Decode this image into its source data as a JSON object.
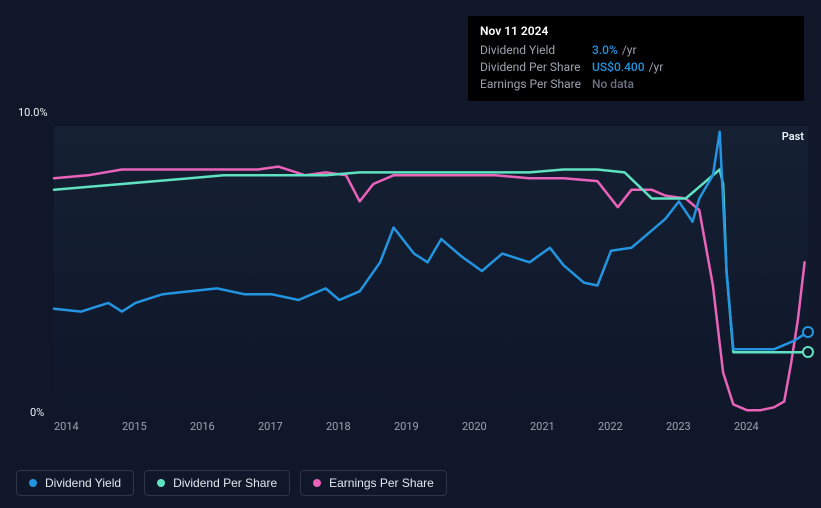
{
  "tooltip": {
    "date": "Nov 11 2024",
    "rows": [
      {
        "label": "Dividend Yield",
        "value": "3.0%",
        "unit": "/yr",
        "cls": ""
      },
      {
        "label": "Dividend Per Share",
        "value": "US$0.400",
        "unit": "/yr",
        "cls": ""
      },
      {
        "label": "Earnings Per Share",
        "value": "No data",
        "unit": "",
        "cls": "nodata"
      }
    ]
  },
  "chart": {
    "type": "line",
    "y_top_label_text": "10.0%",
    "y_bot_label_text": "0%",
    "ylim": [
      0,
      10
    ],
    "x_ticks": [
      "2014",
      "2015",
      "2016",
      "2017",
      "2018",
      "2019",
      "2020",
      "2021",
      "2022",
      "2023",
      "2024"
    ],
    "plot_bg_top": "#152033",
    "plot_bg_bot": "#0f1729",
    "axis_text_color": "#eef2f7",
    "tick_color": "#9ca3af",
    "past_label": "Past",
    "line_width": 2.5,
    "series": {
      "dividend_yield": {
        "color": "#2394df",
        "points": [
          [
            0,
            3.7
          ],
          [
            0.4,
            3.6
          ],
          [
            0.8,
            3.9
          ],
          [
            1.0,
            3.6
          ],
          [
            1.2,
            3.9
          ],
          [
            1.6,
            4.2
          ],
          [
            2.0,
            4.3
          ],
          [
            2.4,
            4.4
          ],
          [
            2.8,
            4.2
          ],
          [
            3.2,
            4.2
          ],
          [
            3.6,
            4.0
          ],
          [
            4.0,
            4.4
          ],
          [
            4.2,
            4.0
          ],
          [
            4.5,
            4.3
          ],
          [
            4.8,
            5.3
          ],
          [
            5.0,
            6.5
          ],
          [
            5.3,
            5.6
          ],
          [
            5.5,
            5.3
          ],
          [
            5.7,
            6.1
          ],
          [
            6.0,
            5.5
          ],
          [
            6.3,
            5.0
          ],
          [
            6.6,
            5.6
          ],
          [
            7.0,
            5.3
          ],
          [
            7.3,
            5.8
          ],
          [
            7.5,
            5.2
          ],
          [
            7.8,
            4.6
          ],
          [
            8.0,
            4.5
          ],
          [
            8.2,
            5.7
          ],
          [
            8.5,
            5.8
          ],
          [
            8.8,
            6.4
          ],
          [
            9.0,
            6.8
          ],
          [
            9.2,
            7.4
          ],
          [
            9.4,
            6.7
          ],
          [
            9.5,
            7.5
          ],
          [
            9.7,
            8.3
          ],
          [
            9.8,
            9.8
          ],
          [
            9.9,
            5.0
          ],
          [
            10.0,
            2.3
          ],
          [
            10.3,
            2.3
          ],
          [
            10.6,
            2.3
          ],
          [
            10.9,
            2.6
          ],
          [
            11.1,
            2.9
          ]
        ],
        "end_dot_y": 2.9
      },
      "dividend_per_share": {
        "color": "#5ee2c0",
        "points": [
          [
            0,
            7.8
          ],
          [
            0.5,
            7.9
          ],
          [
            1.0,
            8.0
          ],
          [
            1.5,
            8.1
          ],
          [
            2.0,
            8.2
          ],
          [
            2.5,
            8.3
          ],
          [
            3.0,
            8.3
          ],
          [
            3.5,
            8.3
          ],
          [
            4.0,
            8.3
          ],
          [
            4.5,
            8.4
          ],
          [
            5.0,
            8.4
          ],
          [
            5.5,
            8.4
          ],
          [
            6.0,
            8.4
          ],
          [
            6.5,
            8.4
          ],
          [
            7.0,
            8.4
          ],
          [
            7.5,
            8.5
          ],
          [
            8.0,
            8.5
          ],
          [
            8.4,
            8.4
          ],
          [
            8.8,
            7.5
          ],
          [
            9.0,
            7.5
          ],
          [
            9.3,
            7.5
          ],
          [
            9.6,
            8.1
          ],
          [
            9.8,
            8.5
          ],
          [
            9.85,
            8.0
          ],
          [
            9.9,
            5.0
          ],
          [
            10.0,
            2.2
          ],
          [
            10.3,
            2.2
          ],
          [
            10.6,
            2.2
          ],
          [
            10.9,
            2.2
          ],
          [
            11.1,
            2.2
          ]
        ],
        "end_dot_y": 2.2
      },
      "earnings_per_share": {
        "color": "#e963ba",
        "points": [
          [
            0,
            8.2
          ],
          [
            0.5,
            8.3
          ],
          [
            1.0,
            8.5
          ],
          [
            1.5,
            8.5
          ],
          [
            2.0,
            8.5
          ],
          [
            2.5,
            8.5
          ],
          [
            3.0,
            8.5
          ],
          [
            3.3,
            8.6
          ],
          [
            3.7,
            8.3
          ],
          [
            4.0,
            8.4
          ],
          [
            4.3,
            8.3
          ],
          [
            4.5,
            7.4
          ],
          [
            4.7,
            8.0
          ],
          [
            5.0,
            8.3
          ],
          [
            5.5,
            8.3
          ],
          [
            6.0,
            8.3
          ],
          [
            6.5,
            8.3
          ],
          [
            7.0,
            8.2
          ],
          [
            7.5,
            8.2
          ],
          [
            8.0,
            8.1
          ],
          [
            8.3,
            7.2
          ],
          [
            8.5,
            7.8
          ],
          [
            8.8,
            7.8
          ],
          [
            9.0,
            7.6
          ],
          [
            9.3,
            7.5
          ],
          [
            9.5,
            7.1
          ],
          [
            9.7,
            4.5
          ],
          [
            9.85,
            1.5
          ],
          [
            10.0,
            0.4
          ],
          [
            10.2,
            0.2
          ],
          [
            10.4,
            0.2
          ],
          [
            10.6,
            0.3
          ],
          [
            10.75,
            0.5
          ],
          [
            10.85,
            1.8
          ],
          [
            10.95,
            3.3
          ],
          [
            11.05,
            5.3
          ]
        ]
      }
    }
  },
  "legend": [
    {
      "label": "Dividend Yield",
      "color": "#2394df",
      "text_color": "#e2e8f0"
    },
    {
      "label": "Dividend Per Share",
      "color": "#5ee2c0",
      "text_color": "#e2e8f0"
    },
    {
      "label": "Earnings Per Share",
      "color": "#e963ba",
      "text_color": "#e2e8f0"
    }
  ]
}
